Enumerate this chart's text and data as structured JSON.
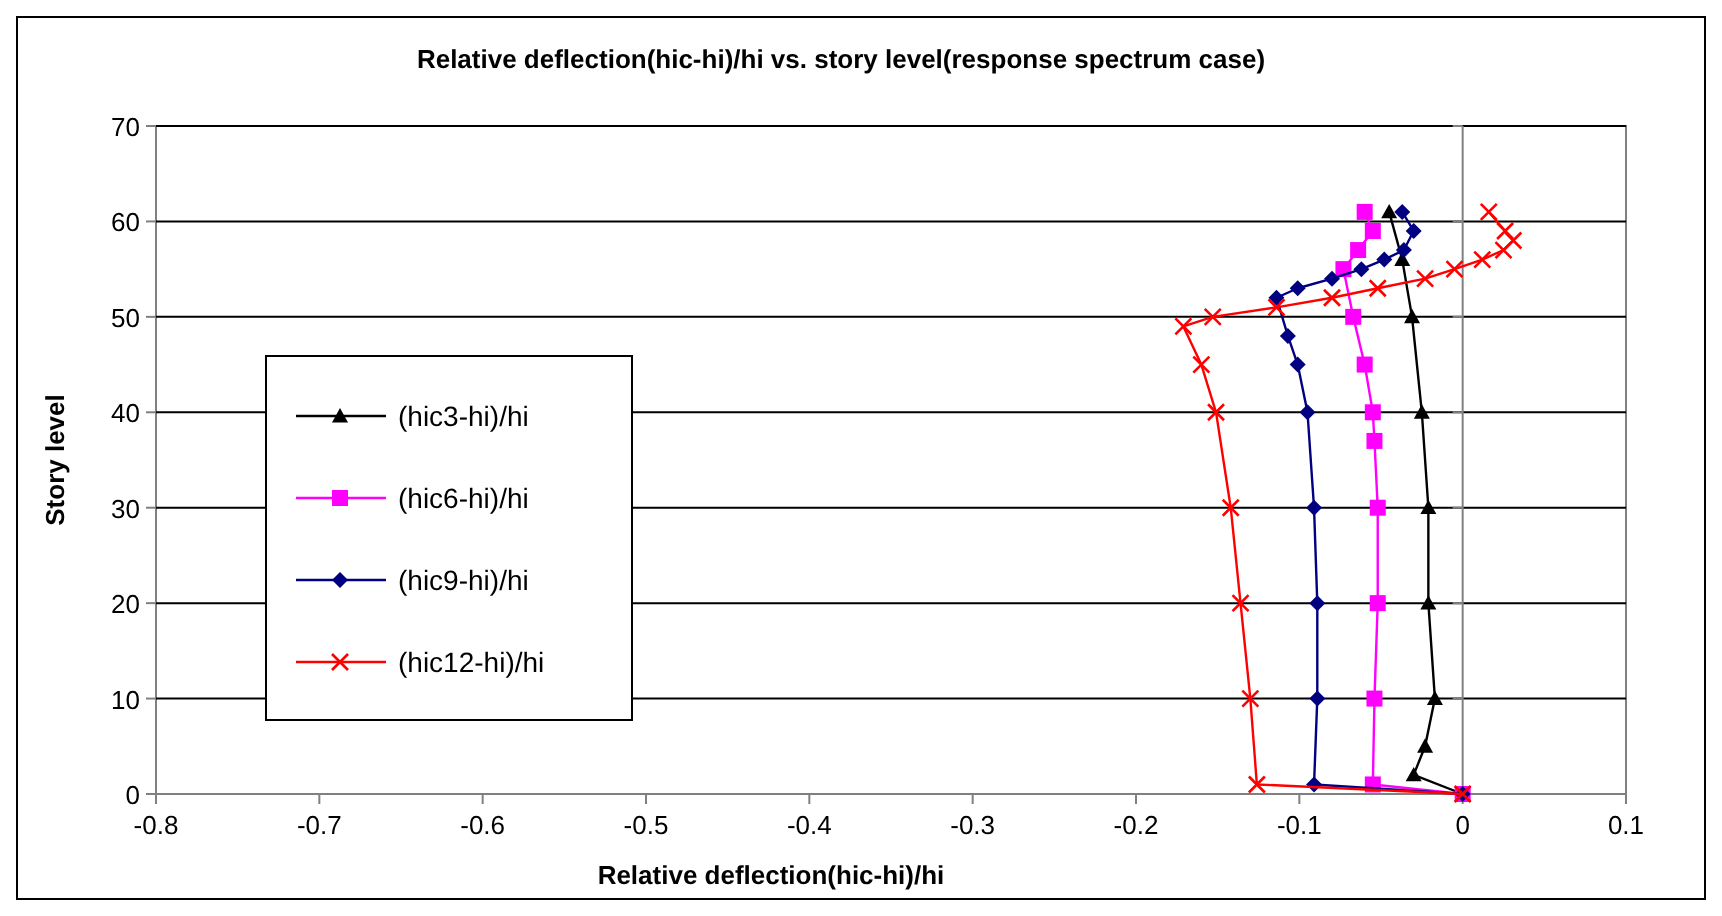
{
  "chart_data": {
    "type": "line",
    "title": "Relative deflection(hic-hi)/hi vs. story level(response spectrum  case)",
    "xlabel": "Relative deflection(hic-hi)/hi",
    "ylabel": "Story level",
    "xlim": [
      -0.8,
      0.1
    ],
    "xticks": [
      -0.8,
      -0.7,
      -0.6,
      -0.5,
      -0.4,
      -0.3,
      -0.2,
      -0.1,
      0,
      0.1
    ],
    "ylim": [
      0,
      70
    ],
    "yticks": [
      0,
      10,
      20,
      30,
      40,
      50,
      60,
      70
    ],
    "grid": "y",
    "legend": "left",
    "line_style": "solid",
    "series": [
      {
        "name": "(hic3-hi)/hi",
        "color": "#000000",
        "marker": "triangle",
        "x": [
          0,
          -0.03,
          -0.023,
          -0.017,
          -0.021,
          -0.021,
          -0.025,
          -0.031,
          -0.037,
          -0.045
        ],
        "values": [
          0,
          2,
          5,
          10,
          20,
          30,
          40,
          50,
          56,
          61
        ]
      },
      {
        "name": "(hic6-hi)/hi",
        "color": "#ff00ff",
        "marker": "square",
        "x": [
          0,
          -0.055,
          -0.054,
          -0.052,
          -0.052,
          -0.054,
          -0.055,
          -0.06,
          -0.067,
          -0.073,
          -0.064,
          -0.055,
          -0.06
        ],
        "values": [
          0,
          1,
          10,
          20,
          30,
          37,
          40,
          45,
          50,
          55,
          57,
          59,
          61
        ]
      },
      {
        "name": "(hic9-hi)/hi",
        "color": "#000080",
        "marker": "diamond",
        "x": [
          0,
          -0.091,
          -0.089,
          -0.089,
          -0.091,
          -0.095,
          -0.101,
          -0.107,
          -0.114,
          -0.101,
          -0.08,
          -0.062,
          -0.048,
          -0.036,
          -0.03,
          -0.037
        ],
        "values": [
          0,
          1,
          10,
          20,
          30,
          40,
          45,
          48,
          52,
          53,
          54,
          55,
          56,
          57,
          59,
          61
        ]
      },
      {
        "name": "(hic12-hi)/hi",
        "color": "#ff0000",
        "marker": "cross",
        "x": [
          0,
          -0.126,
          -0.13,
          -0.136,
          -0.142,
          -0.151,
          -0.16,
          -0.171,
          -0.153,
          -0.114,
          -0.08,
          -0.052,
          -0.023,
          -0.005,
          0.012,
          0.025,
          0.031,
          0.026,
          0.016
        ],
        "values": [
          0,
          1,
          10,
          20,
          30,
          40,
          45,
          49,
          50,
          51,
          52,
          53,
          54,
          55,
          56,
          57,
          58,
          59,
          61
        ]
      }
    ]
  }
}
